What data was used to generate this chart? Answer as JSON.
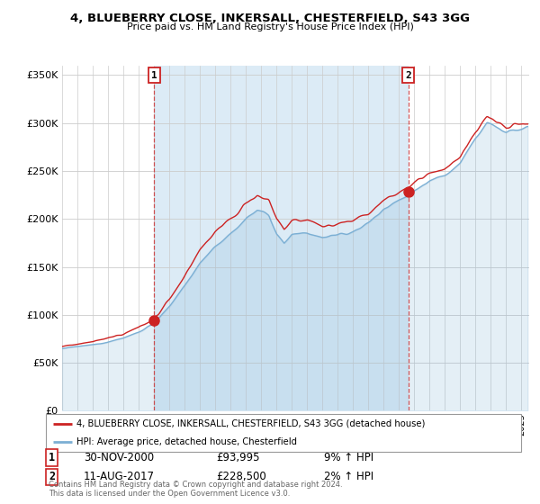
{
  "title": "4, BLUEBERRY CLOSE, INKERSALL, CHESTERFIELD, S43 3GG",
  "subtitle": "Price paid vs. HM Land Registry's House Price Index (HPI)",
  "ylim": [
    0,
    360000
  ],
  "yticks": [
    0,
    50000,
    100000,
    150000,
    200000,
    250000,
    300000,
    350000
  ],
  "ytick_labels": [
    "£0",
    "£50K",
    "£100K",
    "£150K",
    "£200K",
    "£250K",
    "£300K",
    "£350K"
  ],
  "hpi_color": "#7bafd4",
  "hpi_fill_color": "#d6e8f5",
  "price_color": "#cc2222",
  "sale1_date": 2001.0,
  "sale1_price": 93995,
  "sale2_date": 2017.62,
  "sale2_price": 228500,
  "xmin": 1995,
  "xmax": 2025.5,
  "legend_label1": "4, BLUEBERRY CLOSE, INKERSALL, CHESTERFIELD, S43 3GG (detached house)",
  "legend_label2": "HPI: Average price, detached house, Chesterfield",
  "annot1_text": "30-NOV-2000",
  "annot1_price": "£93,995",
  "annot1_hpi": "9% ↑ HPI",
  "annot2_text": "11-AUG-2017",
  "annot2_price": "£228,500",
  "annot2_hpi": "2% ↑ HPI",
  "footer": "Contains HM Land Registry data © Crown copyright and database right 2024.\nThis data is licensed under the Open Government Licence v3.0.",
  "background_color": "#ffffff",
  "grid_color": "#cccccc"
}
